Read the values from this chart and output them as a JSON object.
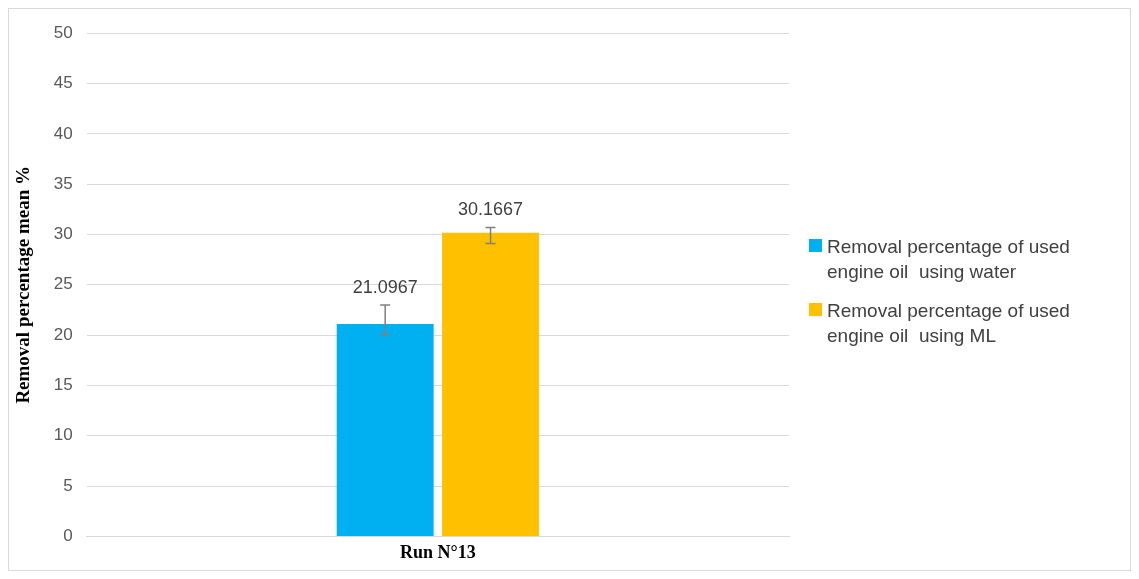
{
  "chart_data": {
    "type": "bar",
    "ylabel": "Removal percentage mean %",
    "categories": [
      "Run N°13"
    ],
    "series": [
      {
        "name": "Removal percentage of used engine oil  using water",
        "color": "#00b0f0",
        "values": [
          21.0967
        ],
        "errors": [
          [
            20.0,
            23.0
          ]
        ]
      },
      {
        "name": "Removal percentage of used engine oil  using ML",
        "color": "#ffc000",
        "values": [
          30.1667
        ],
        "errors": [
          [
            29.1,
            30.7
          ]
        ]
      }
    ],
    "ylim": [
      0,
      50
    ],
    "yticks": [
      0,
      5,
      10,
      15,
      20,
      25,
      30,
      35,
      40,
      45,
      50
    ],
    "grid": "y",
    "legend": "right",
    "data_labels": true
  }
}
